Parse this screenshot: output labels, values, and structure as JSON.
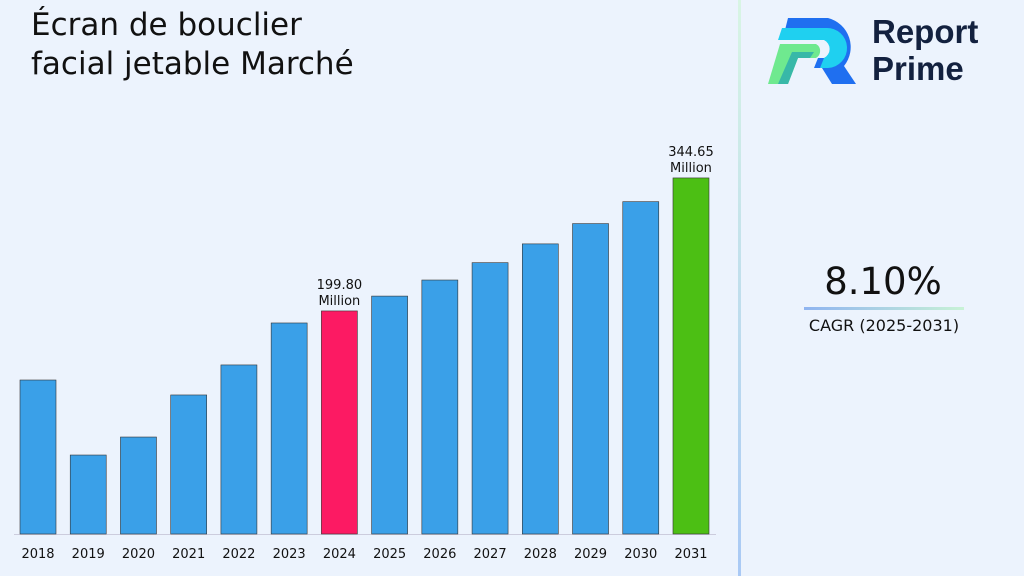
{
  "title": "Écran de bouclier facial jetable Marché",
  "logo": {
    "line1": "Report",
    "line2": "Prime"
  },
  "cagr": {
    "value": "8.10%",
    "label": "CAGR (2025-2031)"
  },
  "colors": {
    "default_bar": "#3aa0e8",
    "highlight_2024": "#fc1a63",
    "highlight_2031": "#4cbf14"
  },
  "chart_data": {
    "type": "bar",
    "title": "Écran de bouclier facial jetable Marché",
    "categories": [
      "2018",
      "2019",
      "2020",
      "2021",
      "2022",
      "2023",
      "2024",
      "2025",
      "2026",
      "2027",
      "2028",
      "2029",
      "2030",
      "2031"
    ],
    "values": [
      124.6,
      42.9,
      62.5,
      108.3,
      141.0,
      186.7,
      199.8,
      215.98,
      233.48,
      252.39,
      272.83,
      294.93,
      318.82,
      344.65
    ],
    "data_labels": [
      {
        "category": "2024",
        "value": "199.80",
        "unit": "Million"
      },
      {
        "category": "2031",
        "value": "344.65",
        "unit": "Million"
      }
    ],
    "grid": false,
    "legend": "none"
  }
}
